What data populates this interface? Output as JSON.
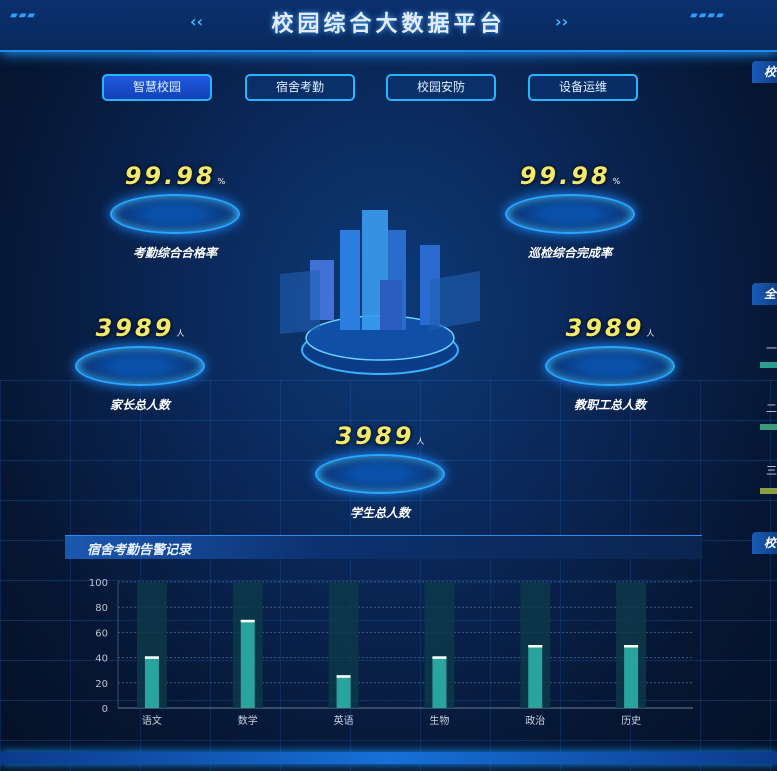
{
  "header": {
    "title": "校园综合大数据平台"
  },
  "tabs": [
    {
      "label": "智慧校园",
      "active": true
    },
    {
      "label": "宿舍考勤",
      "active": false
    },
    {
      "label": "校园安防",
      "active": false
    },
    {
      "label": "设备运维",
      "active": false
    }
  ],
  "stats": [
    {
      "value": "99.98",
      "unit": "%",
      "label": "考勤综合合格率"
    },
    {
      "value": "99.98",
      "unit": "%",
      "label": "巡检综合完成率"
    },
    {
      "value": "3989",
      "unit": "人",
      "label": "家长总人数"
    },
    {
      "value": "3989",
      "unit": "人",
      "label": "教职工总人数"
    },
    {
      "value": "3989",
      "unit": "人",
      "label": "学生总人数"
    }
  ],
  "right_panel": {
    "headers": [
      "校",
      "全",
      "校"
    ],
    "ranks": [
      "一",
      "二",
      "三"
    ]
  },
  "chart_panel": {
    "title": "宿舍考勤告警记录"
  },
  "chart_data": {
    "type": "bar",
    "categories": [
      "语文",
      "数学",
      "英语",
      "生物",
      "政治",
      "历史"
    ],
    "values": [
      41,
      70,
      26,
      41,
      50,
      50
    ],
    "ylim": [
      0,
      100
    ],
    "yticks": [
      0,
      20,
      40,
      60,
      80,
      100
    ],
    "grid": true,
    "colors": {
      "bar": "#2fb8ad",
      "background_column": "#0e3a4a",
      "cap": "#ffffff"
    }
  }
}
